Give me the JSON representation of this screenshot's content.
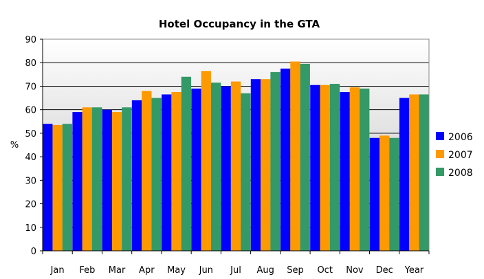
{
  "chart_data": {
    "type": "bar",
    "title": "Hotel Occupancy in the GTA",
    "ylabel": "%",
    "xlabel": "",
    "ylim": [
      0,
      90
    ],
    "yticks": [
      0,
      10,
      20,
      30,
      40,
      50,
      60,
      70,
      80,
      90
    ],
    "grid": true,
    "legend_position": "right",
    "categories": [
      "Jan",
      "Feb",
      "Mar",
      "Apr",
      "May",
      "Jun",
      "Jul",
      "Aug",
      "Sep",
      "Oct",
      "Nov",
      "Dec",
      "Year"
    ],
    "series": [
      {
        "name": "2006",
        "color": "#0000ff",
        "values": [
          54,
          59,
          60,
          64,
          66.5,
          69,
          70,
          73,
          77.5,
          70.5,
          67.5,
          48,
          65
        ]
      },
      {
        "name": "2007",
        "color": "#ff9900",
        "values": [
          53.5,
          61,
          59,
          68,
          67.5,
          76.5,
          72,
          73,
          80.5,
          70.5,
          69.5,
          49,
          66.5
        ]
      },
      {
        "name": "2008",
        "color": "#339966",
        "values": [
          54,
          61,
          61,
          65,
          74,
          71.5,
          67,
          76,
          79.5,
          71,
          69,
          48,
          66.5
        ]
      }
    ]
  }
}
